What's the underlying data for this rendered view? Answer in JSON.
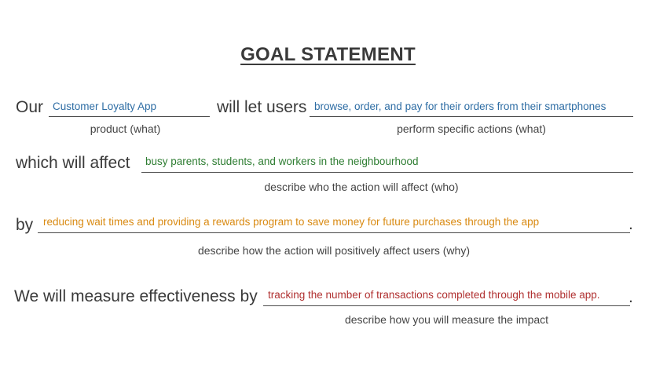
{
  "title": "GOAL STATEMENT",
  "line1": {
    "lead_our": "Our",
    "product": "Customer Loyalty App",
    "product_color": "#2e6da4",
    "hint_product": "product (what)",
    "lead_will": "will let users",
    "action": "browse, order, and pay for their orders from their smartphones",
    "action_color": "#2e6da4",
    "hint_action": "perform specific actions (what)"
  },
  "line2": {
    "lead": "which will affect",
    "who": "busy parents, students, and workers in the neighbourhood",
    "who_color": "#2e7d32",
    "hint": "describe who the action will affect (who)"
  },
  "line3": {
    "lead": "by",
    "why": "reducing wait times and providing a rewards program to save money for future purchases through the app",
    "why_color": "#d98a12",
    "period": ".",
    "hint": "describe how the action will positively affect users (why)"
  },
  "line4": {
    "lead": "We will measure effectiveness by",
    "measure": "tracking the number of transactions completed through the mobile app.",
    "measure_color": "#b03030",
    "period": ".",
    "hint": "describe how you will measure the impact"
  }
}
